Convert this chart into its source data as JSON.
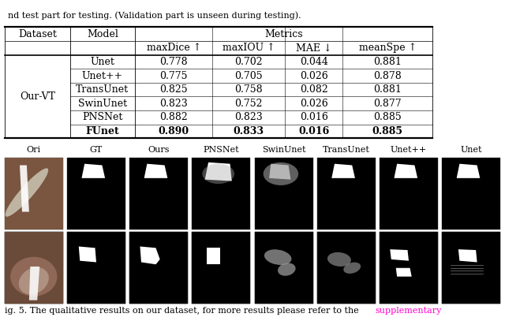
{
  "caption_top": "nd test part for testing. (Validation part is unseen during testing).",
  "caption_bottom_normal": "ig. 5. The qualitative results on our dataset, for more results please refer to the ",
  "caption_bottom_link": "supplementary",
  "table_dataset": "Our-VT",
  "table_rows": [
    [
      "Unet",
      "0.778",
      "0.702",
      "0.044",
      "0.881"
    ],
    [
      "Unet++",
      "0.775",
      "0.705",
      "0.026",
      "0.878"
    ],
    [
      "TransUnet",
      "0.825",
      "0.758",
      "0.082",
      "0.881"
    ],
    [
      "SwinUnet",
      "0.823",
      "0.752",
      "0.026",
      "0.877"
    ],
    [
      "PNSNet",
      "0.882",
      "0.823",
      "0.016",
      "0.885"
    ],
    [
      "FUnet",
      "0.890",
      "0.833",
      "0.016",
      "0.885"
    ]
  ],
  "image_row_labels": [
    "Ori",
    "GT",
    "Ours",
    "PNSNet",
    "SwinUnet",
    "TransUnet",
    "Unet++",
    "Unet"
  ],
  "bg_color": "#ffffff",
  "font_size_table": 9,
  "font_size_caption": 8,
  "font_size_img_label": 8
}
